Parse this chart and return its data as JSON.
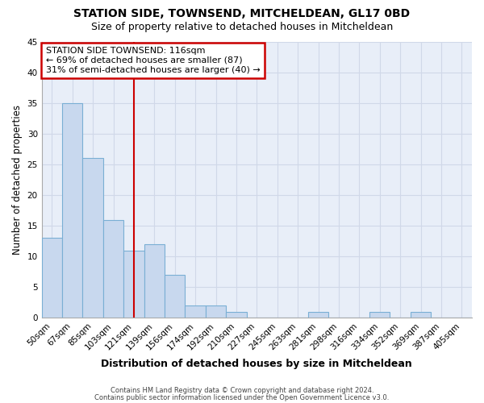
{
  "title": "STATION SIDE, TOWNSEND, MITCHELDEAN, GL17 0BD",
  "subtitle": "Size of property relative to detached houses in Mitcheldean",
  "xlabel": "Distribution of detached houses by size in Mitcheldean",
  "ylabel": "Number of detached properties",
  "categories": [
    "50sqm",
    "67sqm",
    "85sqm",
    "103sqm",
    "121sqm",
    "139sqm",
    "156sqm",
    "174sqm",
    "192sqm",
    "210sqm",
    "227sqm",
    "245sqm",
    "263sqm",
    "281sqm",
    "298sqm",
    "316sqm",
    "334sqm",
    "352sqm",
    "369sqm",
    "387sqm",
    "405sqm"
  ],
  "values": [
    13,
    35,
    26,
    16,
    11,
    12,
    7,
    2,
    2,
    1,
    0,
    0,
    0,
    1,
    0,
    0,
    1,
    0,
    1,
    0,
    0
  ],
  "bar_color": "#c8d8ee",
  "bar_edge_color": "#7aafd4",
  "grid_color": "#d0d8e8",
  "background_color": "#e8eef8",
  "annotation_text": "STATION SIDE TOWNSEND: 116sqm\n← 69% of detached houses are smaller (87)\n31% of semi-detached houses are larger (40) →",
  "annotation_box_color": "#ffffff",
  "annotation_box_edge_color": "#cc0000",
  "red_line_x": 4.0,
  "ylim": [
    0,
    45
  ],
  "yticks": [
    0,
    5,
    10,
    15,
    20,
    25,
    30,
    35,
    40,
    45
  ],
  "footer_line1": "Contains HM Land Registry data © Crown copyright and database right 2024.",
  "footer_line2": "Contains public sector information licensed under the Open Government Licence v3.0."
}
